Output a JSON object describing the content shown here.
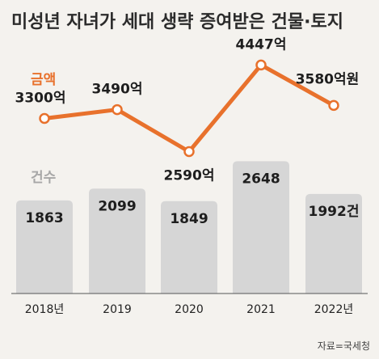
{
  "title": "미성년 자녀가 세대 생략 증여받은 건물·토지",
  "source": "자료=국세청",
  "colors": {
    "line": "#e8712c",
    "bar": "#d6d6d6",
    "bar_label_light": "#a7a7a7",
    "axis": "#555555",
    "background": "#f4f2ee"
  },
  "chart_data": {
    "type": "bar+line",
    "categories": [
      "2018년",
      "2019",
      "2020",
      "2021",
      "2022년"
    ],
    "series": [
      {
        "name": "금액",
        "kind": "line",
        "values": [
          3300,
          3490,
          2590,
          4447,
          3580
        ],
        "labels": [
          "3300억",
          "3490억",
          "2590억",
          "4447억",
          "3580억원"
        ]
      },
      {
        "name": "건수",
        "kind": "bar",
        "values": [
          1863,
          2099,
          1849,
          2648,
          1992
        ],
        "labels": [
          "1863",
          "2099",
          "1849",
          "2648",
          "1992건"
        ]
      }
    ],
    "ylim_line": [
      2200,
      4800
    ],
    "ylim_bar": [
      0,
      2800
    ],
    "grid": false,
    "legend": "inline"
  }
}
